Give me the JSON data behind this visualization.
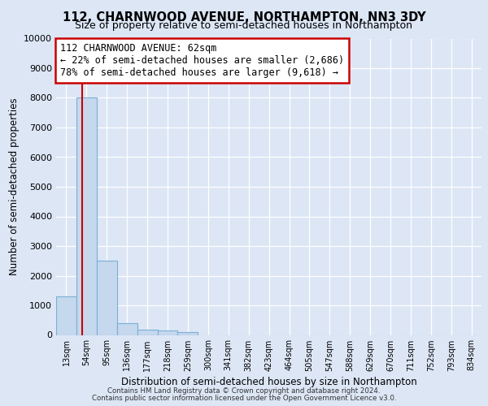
{
  "title1": "112, CHARNWOOD AVENUE, NORTHAMPTON, NN3 3DY",
  "title2": "Size of property relative to semi-detached houses in Northampton",
  "xlabel": "Distribution of semi-detached houses by size in Northampton",
  "ylabel": "Number of semi-detached properties",
  "bar_labels": [
    "13sqm",
    "54sqm",
    "95sqm",
    "136sqm",
    "177sqm",
    "218sqm",
    "259sqm",
    "300sqm",
    "341sqm",
    "382sqm",
    "423sqm",
    "464sqm",
    "505sqm",
    "547sqm",
    "588sqm",
    "629sqm",
    "670sqm",
    "711sqm",
    "752sqm",
    "793sqm",
    "834sqm"
  ],
  "bar_heights": [
    1300,
    8000,
    2500,
    390,
    180,
    140,
    100,
    0,
    0,
    0,
    0,
    0,
    0,
    0,
    0,
    0,
    0,
    0,
    0,
    0,
    0
  ],
  "bar_color": "#c5d8ee",
  "bar_edge_color": "#7bafd4",
  "property_line_x": 0.78,
  "annotation_line1": "112 CHARNWOOD AVENUE: 62sqm",
  "annotation_line2": "← 22% of semi-detached houses are smaller (2,686)",
  "annotation_line3": "78% of semi-detached houses are larger (9,618) →",
  "vline_color": "#cc0000",
  "annotation_box_facecolor": "#ffffff",
  "annotation_box_edgecolor": "#cc0000",
  "ylim": [
    0,
    10000
  ],
  "yticks": [
    0,
    1000,
    2000,
    3000,
    4000,
    5000,
    6000,
    7000,
    8000,
    9000,
    10000
  ],
  "footer1": "Contains HM Land Registry data © Crown copyright and database right 2024.",
  "footer2": "Contains public sector information licensed under the Open Government Licence v3.0.",
  "bg_color": "#dce6f5",
  "plot_bg_color": "#dce6f5",
  "grid_color": "#ffffff"
}
